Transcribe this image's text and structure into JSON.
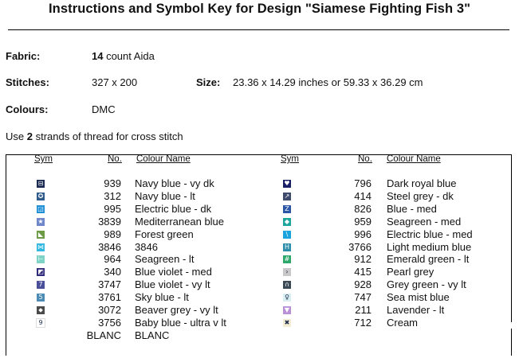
{
  "title": "Instructions and Symbol Key for Design \"Siamese Fighting Fish 3\"",
  "fabric": {
    "label": "Fabric:",
    "count": "14",
    "value": " count Aida"
  },
  "stitches": {
    "label": "Stitches:",
    "value": "327 x 200"
  },
  "size": {
    "label": "Size:",
    "value": "23.36 x 14.29 inches or 59.33 x 36.29 cm"
  },
  "colours": {
    "label": "Colours:",
    "value": "DMC"
  },
  "strands": {
    "pre": "Use ",
    "count": "2",
    "post": " strands of thread for cross stitch"
  },
  "table": {
    "headers": {
      "sym": "Sym",
      "no": "No.",
      "name": "Colour Name"
    },
    "left": [
      {
        "no": "939",
        "name": "Navy blue -  vy dk",
        "color": "#1b2a52",
        "glyph": "⊟",
        "icon": "box-minus-icon"
      },
      {
        "no": "312",
        "name": "Navy blue -  lt",
        "color": "#2e5b8c",
        "glyph": "✪",
        "icon": "circle-star-icon"
      },
      {
        "no": "995",
        "name": "Electric blue -  dk",
        "color": "#1f8fd6",
        "glyph": "◲",
        "icon": "corner-square-icon"
      },
      {
        "no": "3839",
        "name": "Mediterranean blue",
        "color": "#6f86c8",
        "glyph": "★",
        "icon": "star-icon"
      },
      {
        "no": "989",
        "name": "Forest green",
        "color": "#6c9a45",
        "glyph": "◣",
        "icon": "triangle-icon"
      },
      {
        "no": "3846",
        "name": "3846",
        "color": "#33b8e2",
        "glyph": "⋈",
        "icon": "bowtie-icon"
      },
      {
        "no": "964",
        "name": "Seagreen -  lt",
        "color": "#7fd3c6",
        "glyph": "⊢",
        "icon": "tee-icon"
      },
      {
        "no": "340",
        "name": "Blue violet -  med",
        "color": "#2f2a7a",
        "glyph": "◩",
        "icon": "half-square-icon"
      },
      {
        "no": "3747",
        "name": "Blue violet -  vy lt",
        "color": "#4a4f9a",
        "glyph": "7",
        "icon": "number-seven-icon"
      },
      {
        "no": "3761",
        "name": "Sky blue -  lt",
        "color": "#4b8bb4",
        "glyph": "5",
        "icon": "number-five-icon"
      },
      {
        "no": "3072",
        "name": "Beaver grey -  vy lt",
        "color": "#4a4a4a",
        "glyph": "⬥",
        "icon": "diamond-icon"
      },
      {
        "no": "3756",
        "name": "Baby blue -  ultra v lt",
        "color": "#ffffff",
        "glyph": "9",
        "icon": "number-nine-icon"
      },
      {
        "no": "BLANC",
        "name": "BLANC",
        "color": "",
        "glyph": "",
        "icon": ""
      }
    ],
    "right": [
      {
        "no": "796",
        "name": "Dark royal blue",
        "color": "#1a2066",
        "glyph": "♥",
        "icon": "heart-icon"
      },
      {
        "no": "414",
        "name": "Steel grey -  dk",
        "color": "#3d4a6a",
        "glyph": "↗",
        "icon": "arrow-icon"
      },
      {
        "no": "826",
        "name": "Blue -  med",
        "color": "#2b56a6",
        "glyph": "Z",
        "icon": "letter-z-icon"
      },
      {
        "no": "959",
        "name": "Seagreen -  med",
        "color": "#1ea69c",
        "glyph": "◆",
        "icon": "diamond-icon"
      },
      {
        "no": "996",
        "name": "Electric blue -  med",
        "color": "#1aa3dd",
        "glyph": "\\",
        "icon": "backslash-icon"
      },
      {
        "no": "3766",
        "name": "Light medium blue",
        "color": "#2f8faa",
        "glyph": "H",
        "icon": "letter-h-icon"
      },
      {
        "no": "912",
        "name": "Emerald green -  lt",
        "color": "#2ea86a",
        "glyph": "#",
        "icon": "hash-icon"
      },
      {
        "no": "415",
        "name": "Pearl grey",
        "color": "#c8c8c8",
        "glyph": "›",
        "icon": "chevron-right-icon"
      },
      {
        "no": "928",
        "name": "Grey green -  vy lt",
        "color": "#3b4a55",
        "glyph": "∩",
        "icon": "arch-icon"
      },
      {
        "no": "747",
        "name": "Sea mist blue",
        "color": "#d9eef2",
        "glyph": "♀",
        "icon": "female-symbol-icon"
      },
      {
        "no": "211",
        "name": "Lavender -  lt",
        "color": "#b98fd6",
        "glyph": "▼",
        "icon": "down-triangle-icon"
      },
      {
        "no": "712",
        "name": "Cream",
        "color": "#f4ecd2",
        "glyph": "✖",
        "icon": "cross-icon"
      }
    ]
  }
}
